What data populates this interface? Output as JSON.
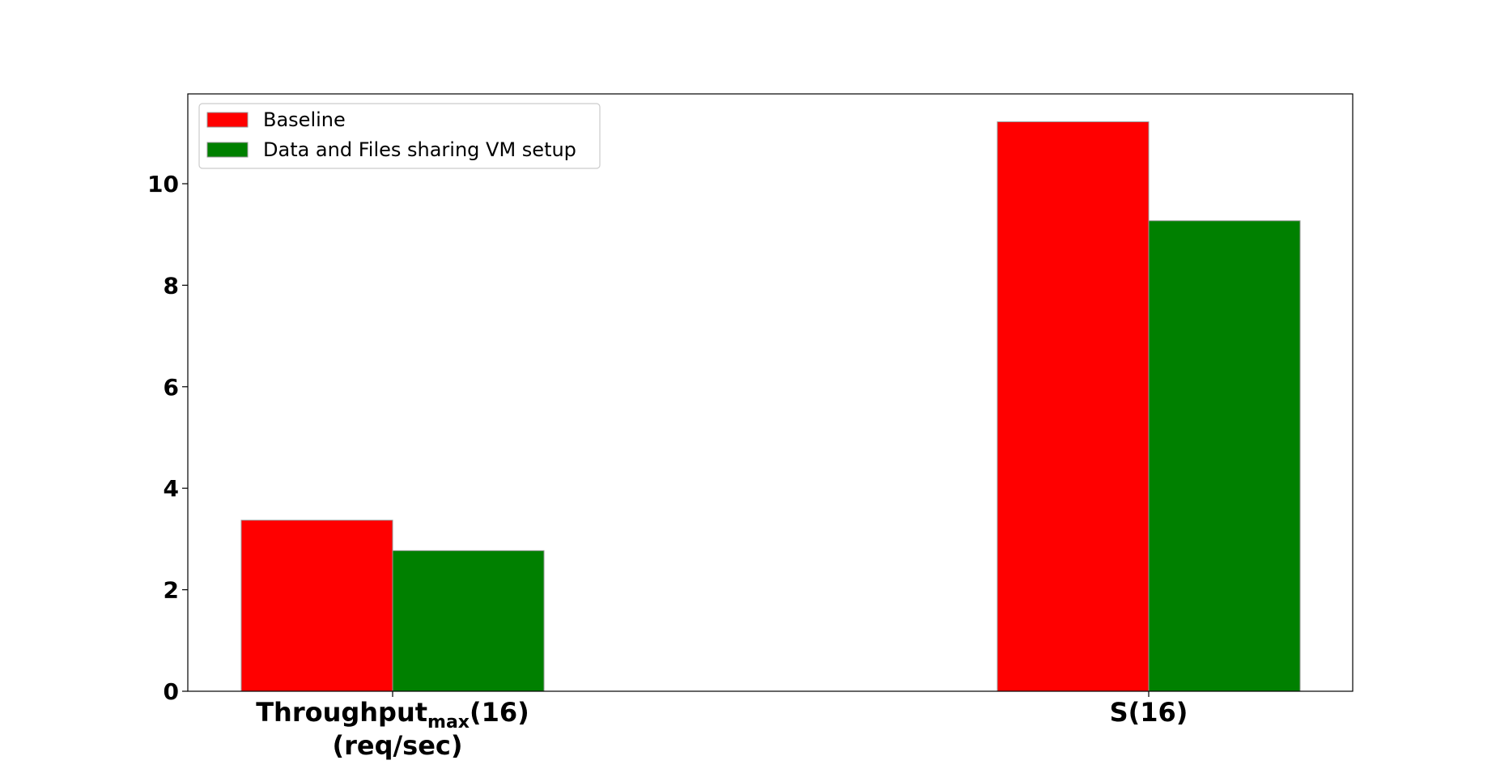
{
  "chart_data": {
    "type": "bar",
    "categories": [
      {
        "main": "Throughput",
        "sub": "max",
        "suffix": "(16)",
        "line2": "(req/sec)"
      },
      {
        "main": "S(16)",
        "sub": "",
        "suffix": "",
        "line2": ""
      }
    ],
    "series": [
      {
        "name": "Baseline",
        "color": "#ff0000",
        "values": [
          3.37,
          11.22
        ]
      },
      {
        "name": "Data and Files sharing VM setup",
        "color": "#008000",
        "values": [
          2.77,
          9.27
        ]
      }
    ],
    "title": "",
    "xlabel": "",
    "ylabel": "",
    "ylim": [
      0,
      11.77
    ],
    "yticks": [
      0,
      2,
      4,
      6,
      8,
      10
    ],
    "grid": false,
    "legend_position": "top-left"
  }
}
